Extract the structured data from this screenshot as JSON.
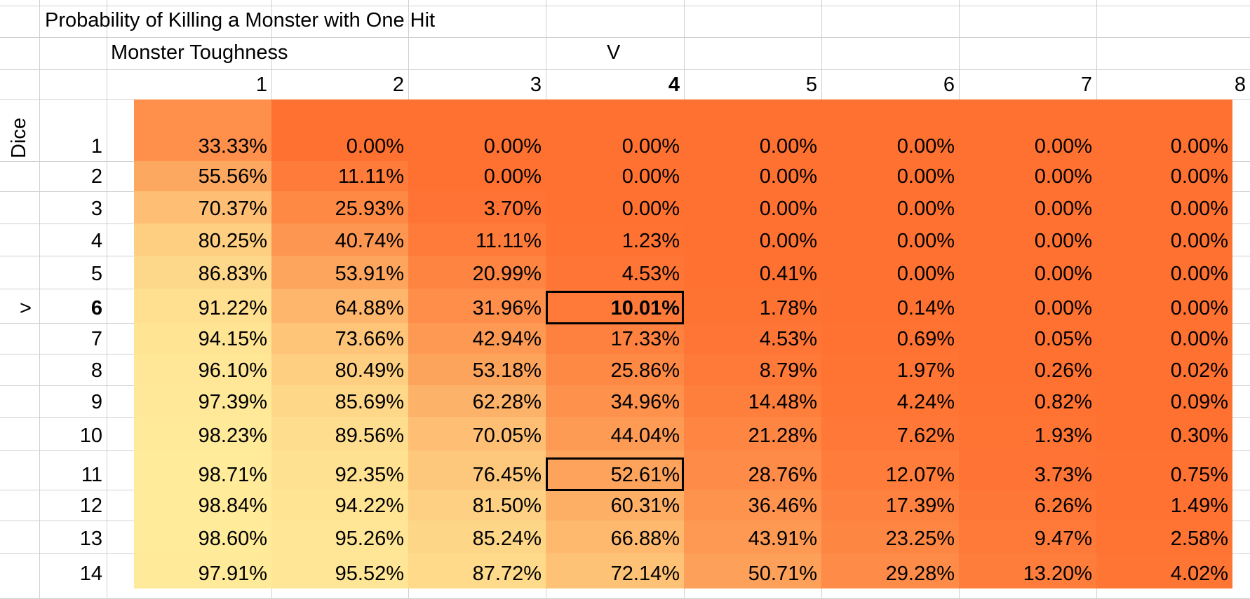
{
  "sheet": {
    "title": "Probability of Killing a Monster with One Hit",
    "col_header_label": "Monster Toughness",
    "col_marker": "V",
    "row_header_label": "Dice",
    "row_marker": ">"
  },
  "chart_data": {
    "type": "heatmap",
    "title": "Probability of Killing a Monster with One Hit",
    "xlabel": "Monster Toughness",
    "ylabel": "Dice",
    "columns": [
      "1",
      "2",
      "3",
      "4",
      "5",
      "6",
      "7",
      "8"
    ],
    "rows": [
      "1",
      "2",
      "3",
      "4",
      "5",
      "6",
      "7",
      "8",
      "9",
      "10",
      "11",
      "12",
      "13",
      "14"
    ],
    "values": [
      [
        "33.33%",
        "0.00%",
        "0.00%",
        "0.00%",
        "0.00%",
        "0.00%",
        "0.00%",
        "0.00%"
      ],
      [
        "55.56%",
        "11.11%",
        "0.00%",
        "0.00%",
        "0.00%",
        "0.00%",
        "0.00%",
        "0.00%"
      ],
      [
        "70.37%",
        "25.93%",
        "3.70%",
        "0.00%",
        "0.00%",
        "0.00%",
        "0.00%",
        "0.00%"
      ],
      [
        "80.25%",
        "40.74%",
        "11.11%",
        "1.23%",
        "0.00%",
        "0.00%",
        "0.00%",
        "0.00%"
      ],
      [
        "86.83%",
        "53.91%",
        "20.99%",
        "4.53%",
        "0.41%",
        "0.00%",
        "0.00%",
        "0.00%"
      ],
      [
        "91.22%",
        "64.88%",
        "31.96%",
        "10.01%",
        "1.78%",
        "0.14%",
        "0.00%",
        "0.00%"
      ],
      [
        "94.15%",
        "73.66%",
        "42.94%",
        "17.33%",
        "4.53%",
        "0.69%",
        "0.05%",
        "0.00%"
      ],
      [
        "96.10%",
        "80.49%",
        "53.18%",
        "25.86%",
        "8.79%",
        "1.97%",
        "0.26%",
        "0.02%"
      ],
      [
        "97.39%",
        "85.69%",
        "62.28%",
        "34.96%",
        "14.48%",
        "4.24%",
        "0.82%",
        "0.09%"
      ],
      [
        "98.23%",
        "89.56%",
        "70.05%",
        "44.04%",
        "21.28%",
        "7.62%",
        "1.93%",
        "0.30%"
      ],
      [
        "98.71%",
        "92.35%",
        "76.45%",
        "52.61%",
        "28.76%",
        "12.07%",
        "3.73%",
        "0.75%"
      ],
      [
        "98.84%",
        "94.22%",
        "81.50%",
        "60.31%",
        "36.46%",
        "17.39%",
        "6.26%",
        "1.49%"
      ],
      [
        "98.60%",
        "95.26%",
        "85.24%",
        "66.88%",
        "43.91%",
        "23.25%",
        "9.47%",
        "2.58%"
      ],
      [
        "97.91%",
        "95.52%",
        "87.72%",
        "72.14%",
        "50.71%",
        "29.28%",
        "13.20%",
        "4.02%"
      ]
    ],
    "highlight_column": "4",
    "highlight_row": "6",
    "boxed_cells": [
      {
        "row": "6",
        "column": "4"
      },
      {
        "row": "11",
        "column": "4"
      }
    ],
    "color_scale": {
      "low": "#ff7131",
      "mid": "#fd9f58",
      "high": "#ffed9c"
    },
    "grid": true
  }
}
